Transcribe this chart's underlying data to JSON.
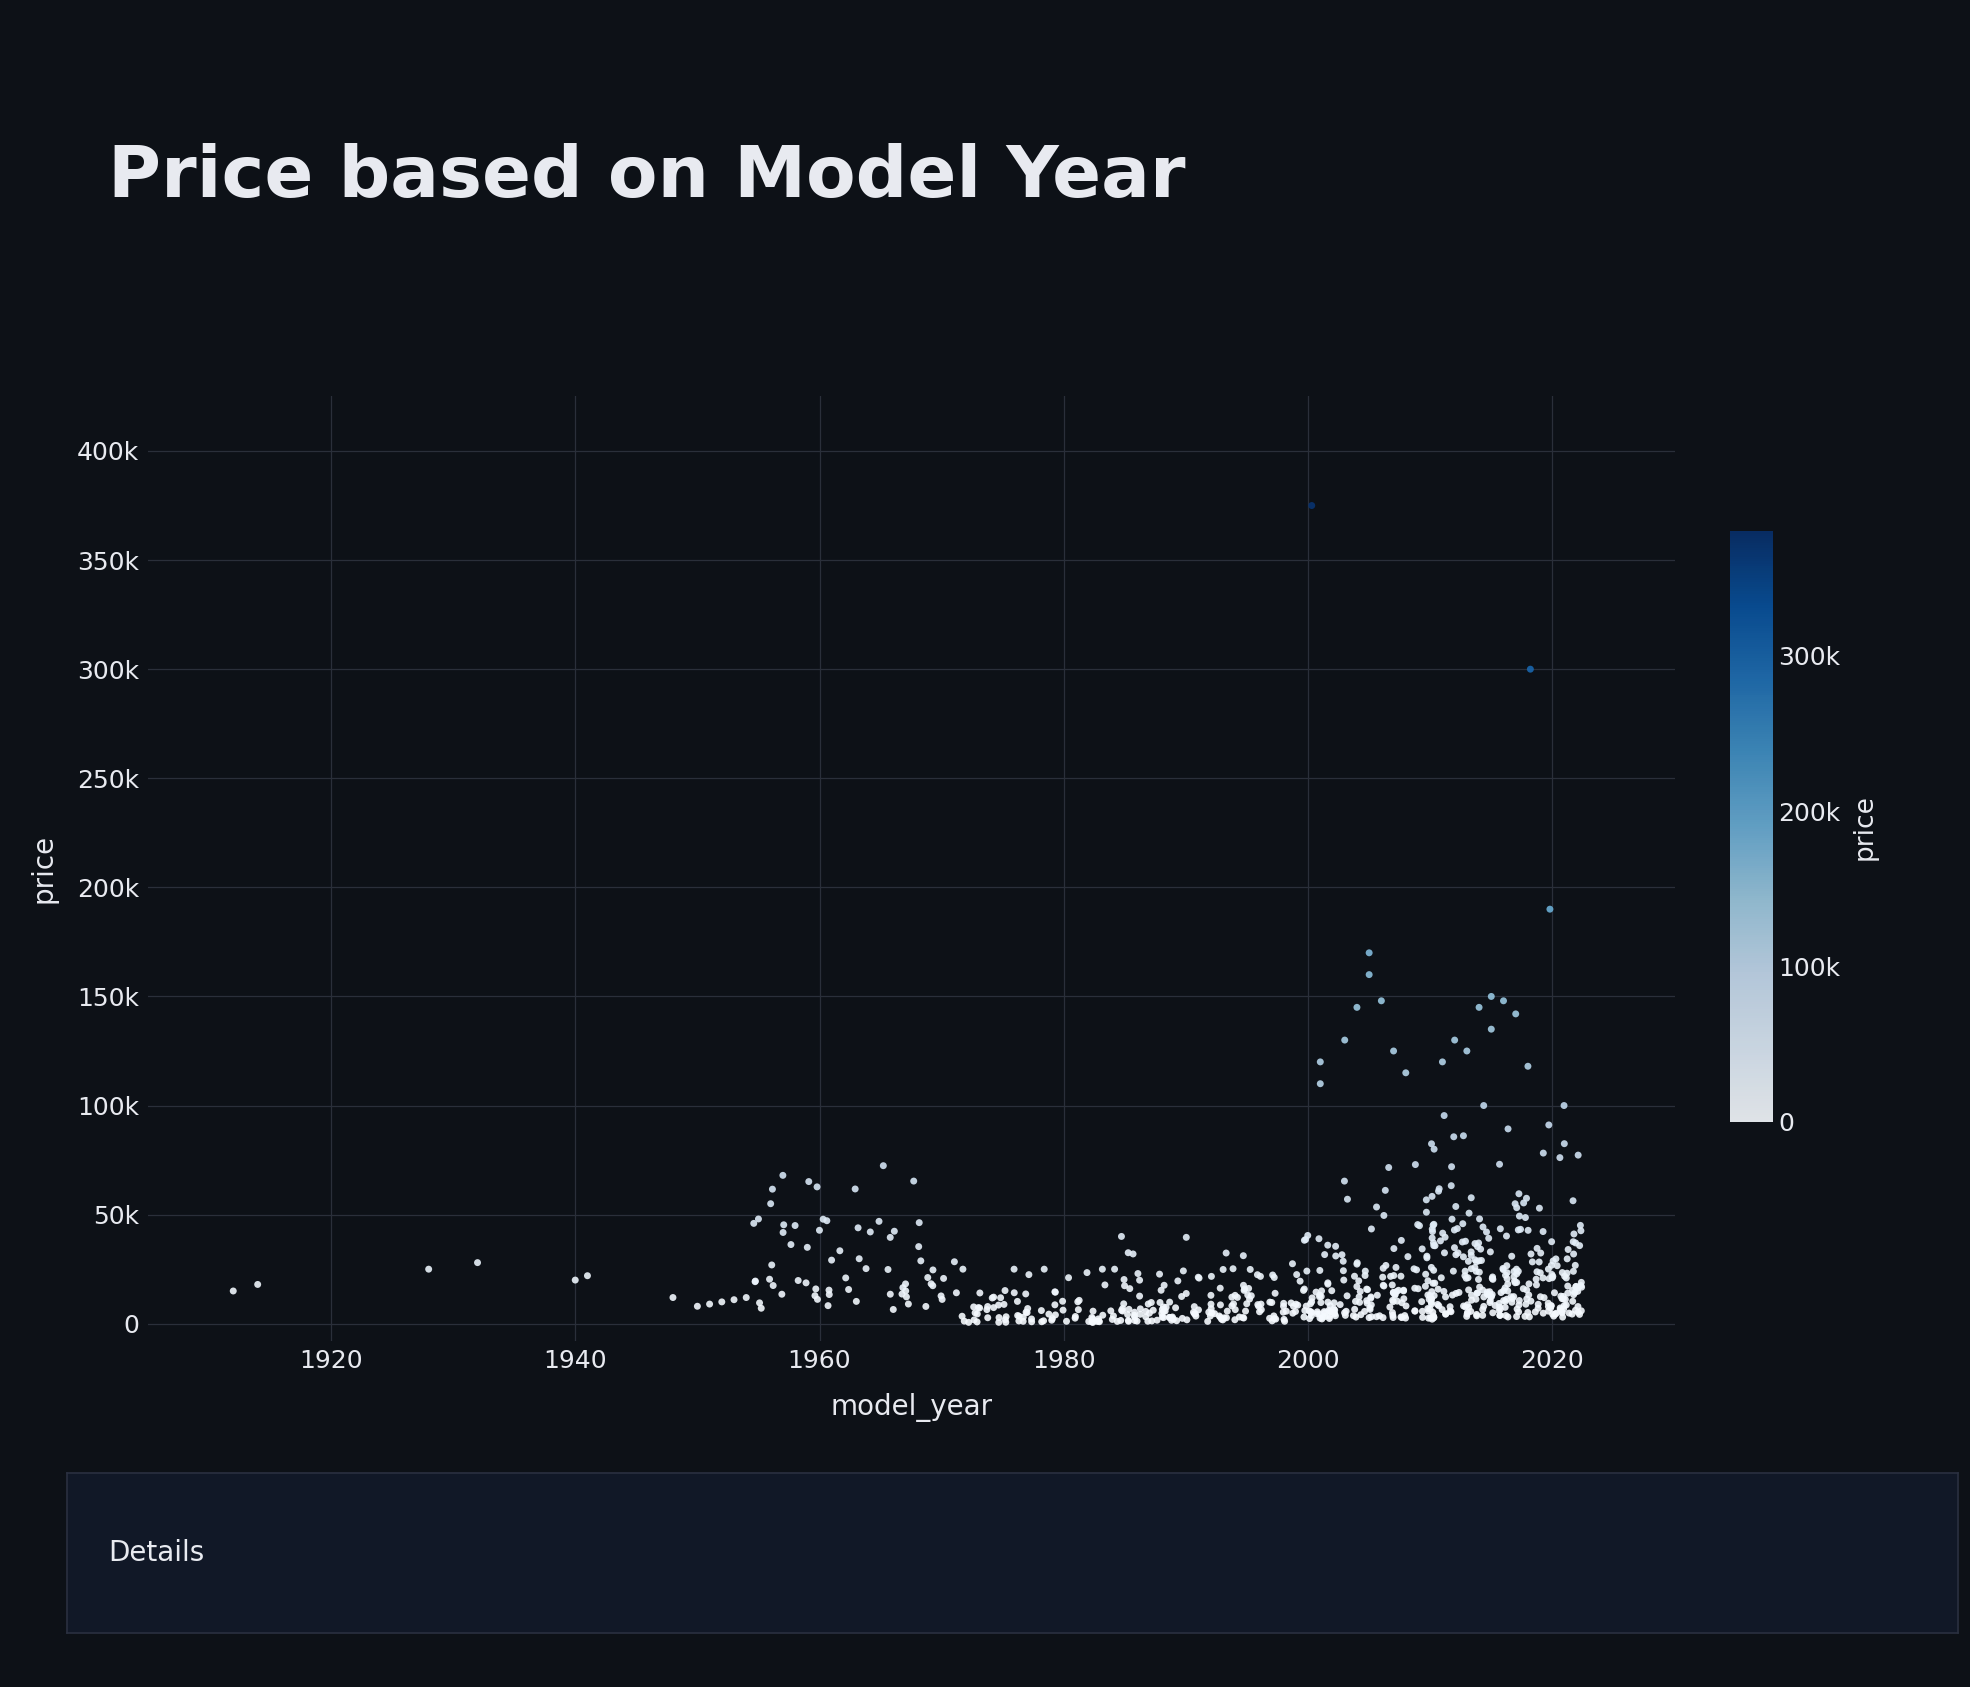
{
  "title": "Price based on Model Year",
  "xlabel": "model_year",
  "ylabel": "price",
  "bg_color": "#0d1117",
  "plot_bg_color": "#0d1117",
  "text_color": "#e8eaf0",
  "grid_color": "#2a2f3a",
  "title_fontsize": 52,
  "label_fontsize": 20,
  "tick_fontsize": 18,
  "colorbar_label": "price",
  "colorbar_label_fontsize": 19,
  "colorbar_ticks": [
    0,
    100000,
    200000,
    300000
  ],
  "colorbar_ticklabels": [
    "0",
    "100k",
    "200k",
    "300k"
  ],
  "ylim": [
    -8000,
    425000
  ],
  "xlim": [
    1905,
    2030
  ],
  "yticks": [
    0,
    50000,
    100000,
    150000,
    200000,
    250000,
    300000,
    350000,
    400000
  ],
  "ytick_labels": [
    "0",
    "50k",
    "100k",
    "150k",
    "200k",
    "250k",
    "300k",
    "350k",
    "400k"
  ],
  "xticks": [
    1920,
    1940,
    1960,
    1980,
    2000,
    2020
  ],
  "marker_size": 25,
  "alpha": 0.9,
  "cmap": "Blues",
  "vmin": 0,
  "vmax": 380000,
  "details_text": "Details",
  "details_bg": "#111827",
  "details_border": "#2a3040"
}
